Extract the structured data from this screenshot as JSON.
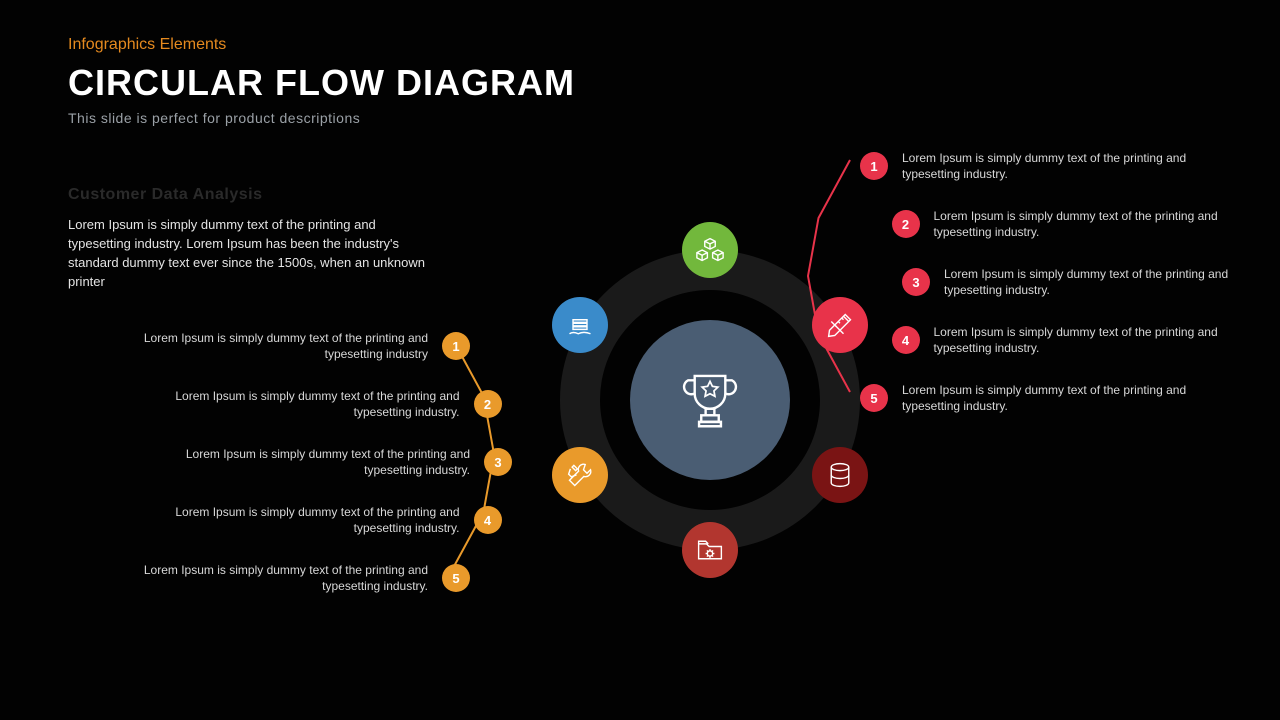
{
  "header": {
    "label": "Infographics Elements",
    "title": "CIRCULAR FLOW DIAGRAM",
    "subtitle": "This slide is perfect for product descriptions"
  },
  "section": {
    "heading": "Customer Data Analysis",
    "paragraph": "Lorem Ipsum is simply dummy text of the printing and typesetting industry. Lorem Ipsum has been the industry's standard dummy text ever since the 1500s, when an unknown printer"
  },
  "diagram": {
    "type": "circular-flow",
    "background": "#020202",
    "ring_outer_color": "#1a1a1a",
    "ring_inner_color": "#020202",
    "core_color": "#4a5d73",
    "ring_outer_diameter": 300,
    "ring_inner_diameter": 220,
    "core_diameter": 160,
    "center_icon": "trophy-star",
    "nodes": [
      {
        "id": "cubes",
        "angle_deg": -90,
        "color": "#72b83c",
        "icon": "cubes-icon"
      },
      {
        "id": "design",
        "angle_deg": -30,
        "color": "#e8334a",
        "icon": "ruler-pencil-icon"
      },
      {
        "id": "database",
        "angle_deg": 30,
        "color": "#7a1414",
        "icon": "database-icon"
      },
      {
        "id": "folder",
        "angle_deg": 90,
        "color": "#b2362f",
        "icon": "folder-gear-icon"
      },
      {
        "id": "tools",
        "angle_deg": 150,
        "color": "#e99a2b",
        "icon": "wrench-screwdriver-icon"
      },
      {
        "id": "care",
        "angle_deg": 210,
        "color": "#3a8bca",
        "icon": "hands-stack-icon"
      }
    ],
    "orbit_radius": 150,
    "node_diameter": 56
  },
  "left_list": {
    "connector_color": "#e99a2b",
    "dot_color": "#e99a2b",
    "items": [
      {
        "n": "1",
        "text": "Lorem Ipsum is simply dummy text of the printing and typesetting industry"
      },
      {
        "n": "2",
        "text": "Lorem Ipsum is simply dummy text of the printing and typesetting industry."
      },
      {
        "n": "3",
        "text": "Lorem Ipsum is simply dummy text of the printing and typesetting industry."
      },
      {
        "n": "4",
        "text": "Lorem Ipsum is simply dummy text of the printing and typesetting industry."
      },
      {
        "n": "5",
        "text": "Lorem Ipsum is simply dummy text of the printing and typesetting industry."
      }
    ]
  },
  "right_list": {
    "connector_color": "#e8334a",
    "dot_color": "#e8334a",
    "items": [
      {
        "n": "1",
        "text": "Lorem Ipsum is simply dummy text of the printing and typesetting industry."
      },
      {
        "n": "2",
        "text": "Lorem Ipsum is simply dummy text of the printing and typesetting industry."
      },
      {
        "n": "3",
        "text": "Lorem Ipsum is simply dummy text of the printing and typesetting industry."
      },
      {
        "n": "4",
        "text": "Lorem Ipsum is simply dummy text of the printing and typesetting industry."
      },
      {
        "n": "5",
        "text": "Lorem Ipsum is simply dummy text of the printing and typesetting industry."
      }
    ]
  },
  "typography": {
    "title_fontsize": 36,
    "body_fontsize": 13,
    "list_fontsize": 12,
    "label_color": "#e58a1f",
    "subtitle_color": "#9aa0a6"
  }
}
